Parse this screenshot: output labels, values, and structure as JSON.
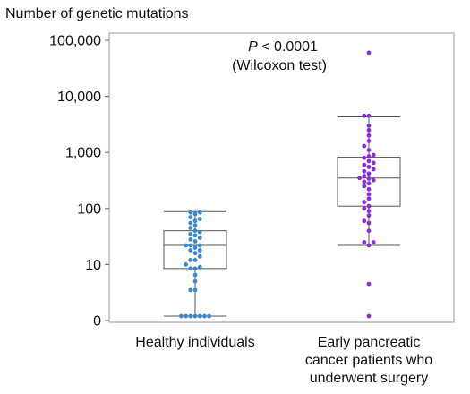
{
  "chart_data": {
    "type": "box",
    "ylabel": "Number of genetic mutations",
    "yscale": "log",
    "ylim": [
      1,
      100000
    ],
    "y_ticks": [
      {
        "value": 1,
        "label": "0"
      },
      {
        "value": 10,
        "label": "10"
      },
      {
        "value": 100,
        "label": "100"
      },
      {
        "value": 1000,
        "label": "1,000"
      },
      {
        "value": 10000,
        "label": "10,000"
      },
      {
        "value": 100000,
        "label": "100,000"
      }
    ],
    "annotation": {
      "p_symbol": "P",
      "p_text": " < 0.0001",
      "test": "(Wilcoxon test)"
    },
    "groups": [
      {
        "label_lines": [
          "Healthy individuals"
        ],
        "color": "#3a87d4",
        "box": {
          "min": 1.2,
          "q1": 8.5,
          "median": 22,
          "q3": 40,
          "max": 88
        },
        "points": [
          1.2,
          1.2,
          1.2,
          1.2,
          1.2,
          1.2,
          1.2,
          3.5,
          3.5,
          5,
          6.5,
          8.5,
          8.5,
          9,
          10,
          12,
          12,
          14,
          16,
          18,
          18,
          20,
          22,
          22,
          22,
          26,
          28,
          30,
          33,
          35,
          38,
          40,
          45,
          50,
          55,
          60,
          65,
          70,
          80,
          85,
          85
        ]
      },
      {
        "label_lines": [
          "Early pancreatic",
          "cancer patients who",
          "underwent surgery"
        ],
        "color": "#8a2be2",
        "box": {
          "min": 22,
          "q1": 110,
          "median": 350,
          "q3": 820,
          "max": 4300
        },
        "points": [
          1.2,
          4.5,
          22,
          25,
          25,
          40,
          55,
          60,
          75,
          90,
          100,
          110,
          130,
          150,
          180,
          220,
          250,
          280,
          300,
          320,
          340,
          350,
          380,
          420,
          460,
          500,
          550,
          600,
          650,
          700,
          800,
          850,
          900,
          1100,
          1300,
          1600,
          2000,
          2500,
          3000,
          4500,
          4500,
          60000
        ]
      }
    ]
  }
}
